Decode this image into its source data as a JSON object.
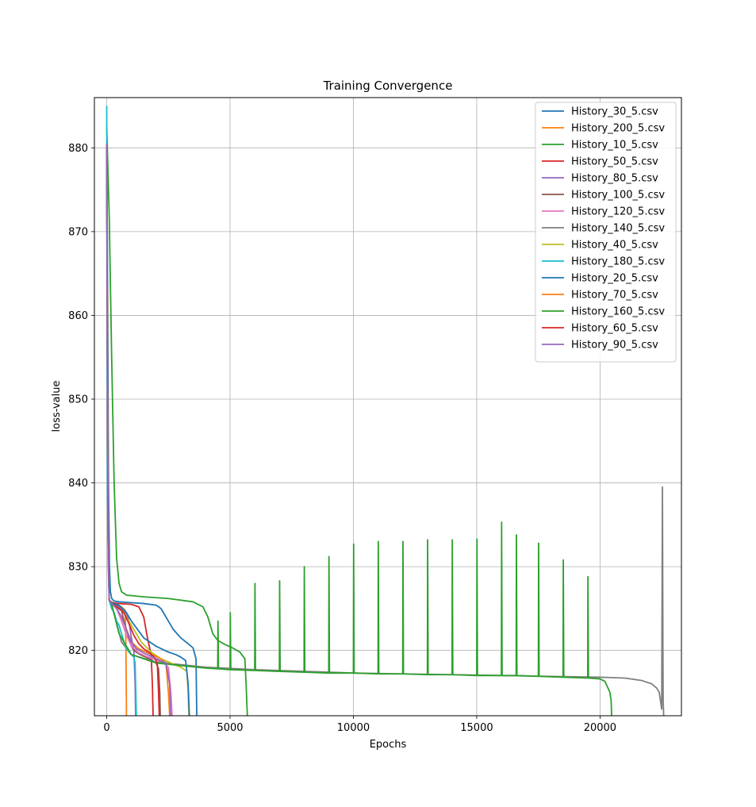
{
  "chart_data": {
    "type": "line",
    "title": "Training Convergence",
    "xlabel": "Epochs",
    "ylabel": "loss-value",
    "xlim": [
      -500,
      23300
    ],
    "ylim": [
      812.2,
      886.0
    ],
    "xticks": [
      0,
      5000,
      10000,
      15000,
      20000
    ],
    "yticks": [
      820,
      830,
      840,
      850,
      860,
      870,
      880
    ],
    "grid": true,
    "legend_position": "top-right",
    "series": [
      {
        "name": "History_30_5.csv",
        "color": "#1f77b4",
        "x": [
          0,
          40,
          70,
          110,
          150,
          200,
          300,
          500,
          1000,
          1500,
          2000,
          2200,
          2400,
          2700,
          3000,
          3300,
          3500,
          3620,
          3650
        ],
        "y": [
          880.5,
          860,
          840,
          830,
          827,
          826.2,
          825.9,
          825.8,
          825.7,
          825.6,
          825.4,
          825,
          824,
          822.5,
          821.5,
          820.8,
          820.3,
          819,
          812.2
        ]
      },
      {
        "name": "History_200_5.csv",
        "color": "#ff7f0e",
        "x": [
          0,
          30,
          60,
          100,
          200,
          400,
          600,
          750,
          780,
          800
        ],
        "y": [
          880.5,
          855,
          835,
          826,
          825.8,
          825.5,
          825.2,
          824.8,
          820,
          812.2
        ]
      },
      {
        "name": "History_10_5.csv",
        "color": "#2ca02c",
        "x": [
          0,
          100,
          200,
          300,
          400,
          500,
          600,
          800,
          1500,
          2500,
          3500,
          3900,
          4100,
          4300,
          4500,
          4800,
          5100,
          5400,
          5600,
          5650,
          5700
        ],
        "y": [
          882.5,
          872,
          855,
          840,
          831,
          828,
          827,
          826.6,
          826.4,
          826.2,
          825.8,
          825.2,
          824,
          822,
          821.2,
          820.7,
          820.3,
          819.8,
          819,
          816,
          812.2
        ]
      },
      {
        "name": "History_50_5.csv",
        "color": "#d62728",
        "x": [
          0,
          30,
          60,
          100,
          200,
          500,
          1000,
          1300,
          1500,
          1650,
          1800,
          1850,
          1880
        ],
        "y": [
          880,
          855,
          835,
          826,
          825.7,
          825.6,
          825.5,
          825.2,
          824,
          821.5,
          819.5,
          816,
          812.2
        ]
      },
      {
        "name": "History_80_5.csv",
        "color": "#9467bd",
        "x": [
          0,
          30,
          60,
          100,
          200,
          500,
          800,
          900,
          1000,
          1100,
          1150,
          1170
        ],
        "y": [
          880,
          850,
          832,
          826,
          825.6,
          825.2,
          824.5,
          823.5,
          821.5,
          820,
          816,
          812.2
        ]
      },
      {
        "name": "History_100_5.csv",
        "color": "#8c564b",
        "x": [
          0,
          30,
          60,
          100,
          200,
          400,
          600,
          700,
          800,
          900,
          1000,
          1100,
          1300,
          1500,
          1800,
          2000,
          2100,
          2150,
          2170
        ],
        "y": [
          880,
          852,
          832,
          826,
          825.6,
          825.3,
          824.8,
          823.5,
          822.5,
          821.5,
          820.5,
          820,
          819.6,
          819.3,
          818.9,
          818.5,
          817.8,
          815,
          812.2
        ]
      },
      {
        "name": "History_120_5.csv",
        "color": "#e377c2",
        "x": [
          0,
          30,
          60,
          100,
          200,
          400,
          600,
          800,
          1000,
          1300,
          1600,
          2000,
          2300,
          2500,
          2600,
          2650
        ],
        "y": [
          880,
          852,
          832,
          826,
          825.6,
          825,
          823.5,
          821.8,
          820.5,
          819.7,
          819.3,
          818.9,
          818.5,
          818,
          815,
          812.2
        ]
      },
      {
        "name": "History_140_5.csv",
        "color": "#7f7f7f",
        "x": [
          0,
          30,
          60,
          100,
          200,
          600,
          1000,
          2000,
          4000,
          6000,
          8000,
          10000,
          12000,
          14000,
          16000,
          18000,
          20000,
          21000,
          21700,
          22100,
          22300,
          22400,
          22450,
          22500,
          22530,
          22550,
          22560,
          22580
        ],
        "y": [
          880,
          850,
          832,
          826,
          825.5,
          821,
          819.5,
          818.6,
          818,
          817.7,
          817.5,
          817.3,
          817.2,
          817.1,
          817,
          816.9,
          816.8,
          816.7,
          816.4,
          816,
          815.5,
          815,
          814,
          813,
          839.5,
          820,
          814,
          812.2
        ]
      },
      {
        "name": "History_40_5.csv",
        "color": "#bcbd22",
        "x": [
          0,
          30,
          60,
          100,
          200,
          400,
          700,
          1000,
          1400,
          1800,
          2200,
          2600,
          3000,
          3250,
          3300,
          3330
        ],
        "y": [
          880,
          850,
          832,
          826,
          825.6,
          825.2,
          824.5,
          823,
          821,
          819.8,
          819,
          818.5,
          818,
          817.5,
          815,
          812.2
        ]
      },
      {
        "name": "History_180_5.csv",
        "color": "#17becf",
        "x": [
          0,
          10,
          30,
          60,
          100,
          150,
          200,
          300,
          400,
          500,
          600,
          700,
          800,
          900,
          1000,
          1100,
          1150,
          1180,
          1200
        ],
        "y": [
          885,
          860,
          840,
          830,
          826,
          825.5,
          825,
          824.5,
          823.5,
          823,
          822,
          821,
          820.2,
          819.8,
          819.5,
          819.2,
          818.5,
          815,
          812.2
        ]
      },
      {
        "name": "History_20_5.csv",
        "color": "#1f77b4",
        "x": [
          0,
          30,
          60,
          100,
          200,
          500,
          800,
          1000,
          1500,
          2000,
          2500,
          2800,
          3000,
          3200,
          3300,
          3350
        ],
        "y": [
          880,
          852,
          834,
          826,
          825.7,
          825.4,
          824.5,
          823.5,
          821.5,
          820.5,
          819.8,
          819.5,
          819.2,
          818.8,
          816,
          812.2
        ]
      },
      {
        "name": "History_70_5.csv",
        "color": "#ff7f0e",
        "x": [
          0,
          30,
          60,
          100,
          200,
          400,
          600,
          800,
          1000,
          1300,
          1600,
          1900,
          2200,
          2400,
          2500,
          2550
        ],
        "y": [
          880,
          852,
          832,
          826,
          825.6,
          825,
          824,
          822.5,
          821,
          820.2,
          819.8,
          819.4,
          819,
          818.5,
          815,
          812.2
        ]
      },
      {
        "name": "History_160_5.csv",
        "color": "#2ca02c",
        "x": [
          0,
          30,
          60,
          100,
          200,
          500,
          1000,
          2000,
          3000,
          4000,
          4500,
          4510,
          4530,
          5000,
          5010,
          5030,
          6000,
          6010,
          6030,
          7000,
          7010,
          7030,
          8000,
          8010,
          8030,
          9000,
          9010,
          9030,
          10000,
          10010,
          10030,
          11000,
          11010,
          11030,
          12000,
          12010,
          12030,
          13000,
          13010,
          13030,
          14000,
          14010,
          14030,
          15000,
          15010,
          15030,
          16000,
          16010,
          16030,
          16600,
          16610,
          16630,
          17500,
          17510,
          17530,
          18500,
          18510,
          18530,
          19500,
          19510,
          19530,
          20000,
          20200,
          20400,
          20450,
          20470
        ],
        "y": [
          880,
          850,
          832,
          826,
          825.5,
          822,
          819.5,
          818.5,
          818.2,
          817.9,
          817.8,
          823.5,
          817.8,
          817.7,
          824.5,
          817.7,
          817.6,
          828,
          817.6,
          817.5,
          828.3,
          817.5,
          817.4,
          830,
          817.4,
          817.3,
          831.2,
          817.3,
          817.3,
          832.7,
          817.3,
          817.2,
          833,
          817.2,
          817.2,
          833,
          817.2,
          817.1,
          833.2,
          817.1,
          817.1,
          833.2,
          817.1,
          817,
          833.3,
          817,
          817,
          835.3,
          817,
          817,
          833.8,
          817,
          816.9,
          832.8,
          816.9,
          816.8,
          830.8,
          816.8,
          816.7,
          828.8,
          816.7,
          816.6,
          816.3,
          815,
          814,
          812.2
        ]
      },
      {
        "name": "History_60_5.csv",
        "color": "#d62728",
        "x": [
          0,
          30,
          60,
          100,
          200,
          400,
          700,
          900,
          1100,
          1300,
          1500,
          1700,
          1900,
          2050,
          2100,
          2130
        ],
        "y": [
          880,
          850,
          832,
          826,
          825.6,
          825.2,
          824.5,
          823.2,
          821.8,
          820.8,
          820.2,
          819.8,
          819.3,
          818.5,
          815,
          812.2
        ]
      },
      {
        "name": "History_90_5.csv",
        "color": "#9467bd",
        "x": [
          0,
          30,
          60,
          100,
          200,
          400,
          600,
          800,
          1000,
          1200,
          1500,
          1800,
          2100,
          2400,
          2550,
          2600
        ],
        "y": [
          880.5,
          850,
          832,
          826,
          825.6,
          825,
          824,
          822.5,
          821,
          820.2,
          819.7,
          819.3,
          818.9,
          818.5,
          816,
          812.2
        ]
      }
    ]
  }
}
